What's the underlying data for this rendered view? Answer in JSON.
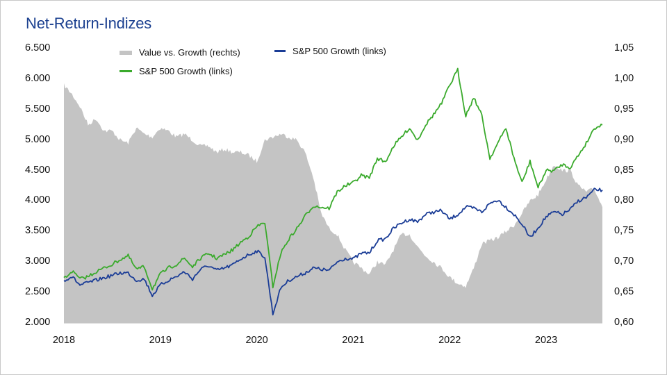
{
  "chart_data": {
    "type": "line",
    "title": "Net-Return-Indizes",
    "xlabel": "",
    "ylabel": "",
    "x_ticks": [
      "2018",
      "2019",
      "2020",
      "2021",
      "2022",
      "2023"
    ],
    "x_range": [
      "2018-01",
      "2023-08"
    ],
    "y_left": {
      "ticks": [
        "2.000",
        "2.500",
        "3.000",
        "3.500",
        "4.000",
        "4.500",
        "5.000",
        "5.500",
        "6.000",
        "6.500"
      ],
      "range": [
        2000,
        6500
      ]
    },
    "y_right": {
      "ticks": [
        "0,60",
        "0,65",
        "0,70",
        "0,75",
        "0,80",
        "0,85",
        "0,90",
        "0,95",
        "1,00",
        "1,05"
      ],
      "range": [
        0.6,
        1.05
      ]
    },
    "grid": false,
    "legend": {
      "placement": "top-left",
      "entries": [
        {
          "label": "Value vs. Growth (rechts)",
          "color": "#c4c4c4",
          "kind": "area"
        },
        {
          "label": "S&P 500 Growth (links)",
          "color": "#1a3c96",
          "kind": "line"
        },
        {
          "label": "S&P 500 Growth (links)",
          "color": "#3aaa2c",
          "kind": "line"
        }
      ]
    },
    "x": [
      "2018-01",
      "2018-02",
      "2018-03",
      "2018-04",
      "2018-05",
      "2018-06",
      "2018-07",
      "2018-08",
      "2018-09",
      "2018-10",
      "2018-11",
      "2018-12",
      "2019-01",
      "2019-02",
      "2019-03",
      "2019-04",
      "2019-05",
      "2019-06",
      "2019-07",
      "2019-08",
      "2019-09",
      "2019-10",
      "2019-11",
      "2019-12",
      "2020-01",
      "2020-02",
      "2020-03",
      "2020-04",
      "2020-05",
      "2020-06",
      "2020-07",
      "2020-08",
      "2020-09",
      "2020-10",
      "2020-11",
      "2020-12",
      "2021-01",
      "2021-02",
      "2021-03",
      "2021-04",
      "2021-05",
      "2021-06",
      "2021-07",
      "2021-08",
      "2021-09",
      "2021-10",
      "2021-11",
      "2021-12",
      "2022-01",
      "2022-02",
      "2022-03",
      "2022-04",
      "2022-05",
      "2022-06",
      "2022-07",
      "2022-08",
      "2022-09",
      "2022-10",
      "2022-11",
      "2022-12",
      "2023-01",
      "2023-02",
      "2023-03",
      "2023-04",
      "2023-05",
      "2023-06",
      "2023-07",
      "2023-08"
    ],
    "series": [
      {
        "name": "Value vs. Growth (rechts)",
        "axis": "right",
        "type": "area",
        "color": "#c4c4c4",
        "values": [
          0.99,
          0.975,
          0.955,
          0.925,
          0.935,
          0.915,
          0.915,
          0.9,
          0.895,
          0.92,
          0.91,
          0.905,
          0.92,
          0.915,
          0.905,
          0.91,
          0.9,
          0.89,
          0.89,
          0.88,
          0.885,
          0.88,
          0.88,
          0.875,
          0.865,
          0.9,
          0.905,
          0.91,
          0.905,
          0.9,
          0.88,
          0.84,
          0.78,
          0.755,
          0.745,
          0.72,
          0.7,
          0.69,
          0.68,
          0.7,
          0.695,
          0.72,
          0.745,
          0.745,
          0.725,
          0.71,
          0.7,
          0.69,
          0.675,
          0.665,
          0.66,
          0.69,
          0.73,
          0.735,
          0.74,
          0.75,
          0.76,
          0.78,
          0.8,
          0.81,
          0.835,
          0.86,
          0.85,
          0.85,
          0.825,
          0.815,
          0.82,
          0.79
        ]
      },
      {
        "name": "S&P 500 Growth (links)",
        "axis": "left",
        "type": "line",
        "color": "#1a3c96",
        "values": [
          2700,
          2760,
          2620,
          2660,
          2700,
          2740,
          2780,
          2820,
          2820,
          2700,
          2720,
          2450,
          2620,
          2700,
          2760,
          2840,
          2720,
          2880,
          2940,
          2860,
          2900,
          2950,
          3050,
          3120,
          3180,
          3080,
          2150,
          2580,
          2700,
          2760,
          2820,
          2900,
          2880,
          2860,
          3000,
          3060,
          3050,
          3140,
          3150,
          3350,
          3380,
          3550,
          3640,
          3700,
          3660,
          3780,
          3820,
          3840,
          3700,
          3780,
          3900,
          3880,
          3820,
          3960,
          4020,
          3900,
          3780,
          3620,
          3400,
          3560,
          3740,
          3820,
          3780,
          3860,
          4000,
          4060,
          4180,
          4180
        ]
      },
      {
        "name": "S&P 500 Growth (links)",
        "axis": "left",
        "type": "line",
        "color": "#3aaa2c",
        "values": [
          2720,
          2850,
          2720,
          2760,
          2840,
          2900,
          2960,
          3040,
          3100,
          2880,
          2920,
          2560,
          2800,
          2900,
          2960,
          3060,
          2920,
          3060,
          3140,
          3060,
          3120,
          3200,
          3320,
          3420,
          3580,
          3650,
          2600,
          3150,
          3380,
          3550,
          3750,
          3920,
          3900,
          3880,
          4150,
          4250,
          4300,
          4420,
          4380,
          4700,
          4640,
          4900,
          5050,
          5200,
          5000,
          5250,
          5420,
          5600,
          5900,
          6150,
          5400,
          5700,
          5400,
          4700,
          4950,
          5200,
          4700,
          4300,
          4650,
          4220,
          4500,
          4500,
          4600,
          4550,
          4750,
          4950,
          5200,
          5250
        ]
      }
    ]
  }
}
